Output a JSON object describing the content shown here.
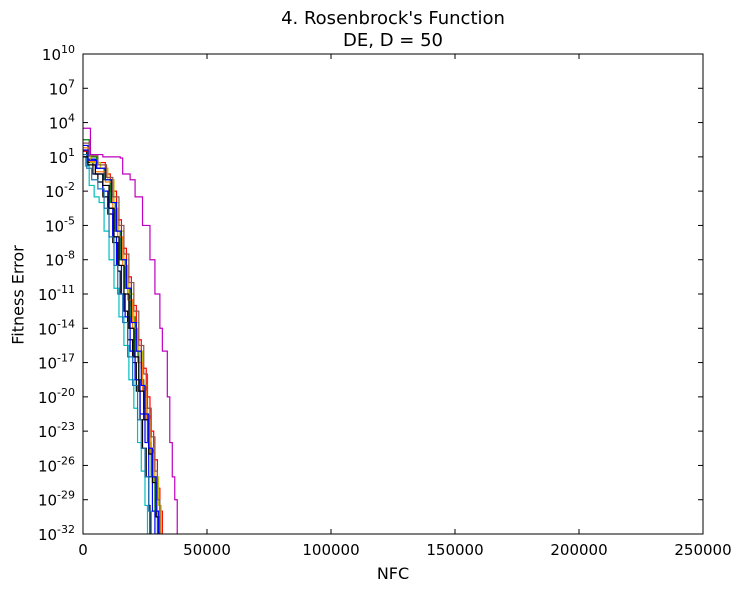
{
  "chart_data": {
    "type": "line",
    "title": "4.   Rosenbrock's Function",
    "subtitle": "DE, D = 50",
    "xlabel": "NFC",
    "ylabel": "Fitness Error",
    "xlim": [
      0,
      250000
    ],
    "ylim_exponent": [
      -32,
      10
    ],
    "yscale": "log",
    "grid": false,
    "xticks": [
      0,
      50000,
      100000,
      150000,
      200000,
      250000
    ],
    "xtick_labels": [
      "0",
      "50000",
      "100000",
      "150000",
      "200000",
      "250000"
    ],
    "ytick_exponents": [
      10,
      7,
      4,
      1,
      -2,
      -5,
      -8,
      -11,
      -14,
      -17,
      -20,
      -23,
      -26,
      -29,
      -32
    ],
    "series_colors": [
      "#000000",
      "#0000ff",
      "#ff0000",
      "#008000",
      "#00bfbf",
      "#bf00bf",
      "#bfbf00",
      "#ff7f0e",
      "#1f77b4",
      "#8c564b"
    ],
    "runs": [
      {
        "color": "#bf00bf",
        "points": [
          [
            0,
            3.5
          ],
          [
            3000,
            1.2
          ],
          [
            8000,
            1.0
          ],
          [
            15000,
            0.9
          ],
          [
            16000,
            -0.5
          ],
          [
            19000,
            -1.0
          ],
          [
            21000,
            -2.5
          ],
          [
            24000,
            -5
          ],
          [
            27000,
            -8
          ],
          [
            29000,
            -11
          ],
          [
            31000,
            -14
          ],
          [
            32000,
            -16
          ],
          [
            34000,
            -20
          ],
          [
            35000,
            -24
          ],
          [
            36000,
            -27
          ],
          [
            37000,
            -29
          ],
          [
            38000,
            -32
          ]
        ]
      },
      {
        "color": "#000000",
        "points": [
          [
            0,
            1.5
          ],
          [
            1500,
            0.5
          ],
          [
            4000,
            -0.5
          ],
          [
            6000,
            -1.2
          ],
          [
            8000,
            -2.5
          ],
          [
            10000,
            -4
          ],
          [
            12000,
            -6.5
          ],
          [
            14000,
            -9
          ],
          [
            15000,
            -11
          ],
          [
            16500,
            -12.5
          ],
          [
            18000,
            -15
          ],
          [
            20000,
            -17
          ],
          [
            21500,
            -19.5
          ],
          [
            23000,
            -22
          ],
          [
            24000,
            -24.5
          ],
          [
            25500,
            -27
          ],
          [
            26500,
            -29.5
          ],
          [
            27000,
            -32
          ]
        ]
      },
      {
        "color": "#00bfbf",
        "points": [
          [
            0,
            1.0
          ],
          [
            1000,
            0.2
          ],
          [
            2500,
            -1.5
          ],
          [
            4500,
            -2.5
          ],
          [
            6500,
            -3
          ],
          [
            8500,
            -5.5
          ],
          [
            10500,
            -8
          ],
          [
            12500,
            -10.5
          ],
          [
            14500,
            -13
          ],
          [
            16500,
            -15.5
          ],
          [
            18500,
            -18.5
          ],
          [
            20500,
            -21
          ],
          [
            22000,
            -24
          ],
          [
            23500,
            -26.5
          ],
          [
            25000,
            -29.5
          ],
          [
            26000,
            -32
          ]
        ]
      },
      {
        "color": "#0000ff",
        "points": [
          [
            0,
            2.0
          ],
          [
            2000,
            0.8
          ],
          [
            5000,
            -0.5
          ],
          [
            8000,
            -2
          ],
          [
            10000,
            -3.5
          ],
          [
            12000,
            -6
          ],
          [
            13500,
            -8.5
          ],
          [
            15500,
            -11
          ],
          [
            17000,
            -13
          ],
          [
            19000,
            -16
          ],
          [
            21000,
            -18.5
          ],
          [
            23000,
            -21.5
          ],
          [
            25000,
            -24
          ],
          [
            26500,
            -27
          ],
          [
            28000,
            -30
          ],
          [
            29000,
            -32
          ]
        ]
      },
      {
        "color": "#ff0000",
        "points": [
          [
            0,
            1.5
          ],
          [
            2000,
            1.0
          ],
          [
            6000,
            0.5
          ],
          [
            9000,
            -0.5
          ],
          [
            11000,
            -2
          ],
          [
            13500,
            -4.5
          ],
          [
            15500,
            -7
          ],
          [
            17500,
            -9.5
          ],
          [
            19500,
            -12
          ],
          [
            21500,
            -15
          ],
          [
            23500,
            -17.5
          ],
          [
            25500,
            -20
          ],
          [
            27000,
            -23
          ],
          [
            28500,
            -25.5
          ],
          [
            30000,
            -28
          ],
          [
            31000,
            -30
          ],
          [
            32000,
            -32
          ]
        ]
      },
      {
        "color": "#008000",
        "points": [
          [
            0,
            2.5
          ],
          [
            2500,
            1.0
          ],
          [
            5500,
            0.0
          ],
          [
            8500,
            -1.0
          ],
          [
            11000,
            -3
          ],
          [
            13000,
            -5.5
          ],
          [
            15000,
            -8
          ],
          [
            17000,
            -10.5
          ],
          [
            19000,
            -13
          ],
          [
            21000,
            -16
          ],
          [
            22500,
            -18.5
          ],
          [
            24500,
            -21
          ],
          [
            26000,
            -24
          ],
          [
            27500,
            -27
          ],
          [
            29000,
            -30
          ],
          [
            30000,
            -32
          ]
        ]
      },
      {
        "color": "#bfbf00",
        "points": [
          [
            0,
            1.0
          ],
          [
            3000,
            0.5
          ],
          [
            7000,
            0.0
          ],
          [
            10000,
            -1.0
          ],
          [
            12500,
            -3
          ],
          [
            14500,
            -5.5
          ],
          [
            16500,
            -8
          ],
          [
            18500,
            -11
          ],
          [
            20500,
            -13.5
          ],
          [
            22500,
            -16
          ],
          [
            24000,
            -19
          ],
          [
            26000,
            -21.5
          ],
          [
            27500,
            -24.5
          ],
          [
            29000,
            -27
          ],
          [
            30500,
            -29.5
          ],
          [
            31500,
            -32
          ]
        ]
      },
      {
        "color": "#ff7f0e",
        "points": [
          [
            0,
            1.8
          ],
          [
            2000,
            0.6
          ],
          [
            5000,
            -0.3
          ],
          [
            9000,
            -1.2
          ],
          [
            12000,
            -3.5
          ],
          [
            14000,
            -6
          ],
          [
            16000,
            -8.5
          ],
          [
            18000,
            -11.5
          ],
          [
            20000,
            -14
          ],
          [
            22000,
            -17
          ],
          [
            24000,
            -19.5
          ],
          [
            25500,
            -22
          ],
          [
            27000,
            -25
          ],
          [
            28500,
            -27.5
          ],
          [
            30000,
            -30.5
          ],
          [
            31000,
            -32
          ]
        ]
      },
      {
        "color": "#1f77b4",
        "points": [
          [
            0,
            1.2
          ],
          [
            1500,
            0.0
          ],
          [
            3500,
            -1.0
          ],
          [
            6000,
            -1.8
          ],
          [
            8500,
            -3.5
          ],
          [
            10500,
            -6
          ],
          [
            12500,
            -8.5
          ],
          [
            14000,
            -11
          ],
          [
            16000,
            -13.5
          ],
          [
            18000,
            -16.5
          ],
          [
            20000,
            -19
          ],
          [
            22000,
            -22
          ],
          [
            23500,
            -24.5
          ],
          [
            25000,
            -27
          ],
          [
            26500,
            -30
          ],
          [
            27500,
            -32
          ]
        ]
      },
      {
        "color": "#8c564b",
        "points": [
          [
            0,
            2.2
          ],
          [
            2500,
            1.1
          ],
          [
            6000,
            0.3
          ],
          [
            9500,
            -0.8
          ],
          [
            12000,
            -2.5
          ],
          [
            14500,
            -5
          ],
          [
            16500,
            -7.5
          ],
          [
            18500,
            -10
          ],
          [
            20500,
            -12.5
          ],
          [
            22500,
            -15.5
          ],
          [
            24500,
            -18
          ],
          [
            26000,
            -21
          ],
          [
            27500,
            -23.5
          ],
          [
            29000,
            -26.5
          ],
          [
            30000,
            -29
          ],
          [
            31000,
            -32
          ]
        ]
      },
      {
        "color": "#000000",
        "points": [
          [
            0,
            1.0
          ],
          [
            2000,
            0.3
          ],
          [
            5000,
            -0.5
          ],
          [
            8000,
            -1.5
          ],
          [
            10500,
            -3.5
          ],
          [
            12500,
            -6
          ],
          [
            14500,
            -8.5
          ],
          [
            16500,
            -11
          ],
          [
            18500,
            -14
          ],
          [
            20500,
            -16.5
          ],
          [
            22500,
            -19.5
          ],
          [
            24500,
            -22
          ],
          [
            26500,
            -25
          ],
          [
            28000,
            -27.5
          ],
          [
            29500,
            -30.5
          ],
          [
            30500,
            -32
          ]
        ]
      },
      {
        "color": "#0000ff",
        "points": [
          [
            0,
            1.6
          ],
          [
            2000,
            0.7
          ],
          [
            5500,
            0.0
          ],
          [
            9000,
            -1.0
          ],
          [
            11500,
            -3
          ],
          [
            13500,
            -5.5
          ],
          [
            15500,
            -8
          ],
          [
            17500,
            -10.5
          ],
          [
            19500,
            -13.5
          ],
          [
            21500,
            -16
          ],
          [
            23500,
            -19
          ],
          [
            25000,
            -21.5
          ],
          [
            26500,
            -24.5
          ],
          [
            28000,
            -27
          ],
          [
            29500,
            -30
          ],
          [
            30500,
            -32
          ]
        ]
      }
    ]
  }
}
